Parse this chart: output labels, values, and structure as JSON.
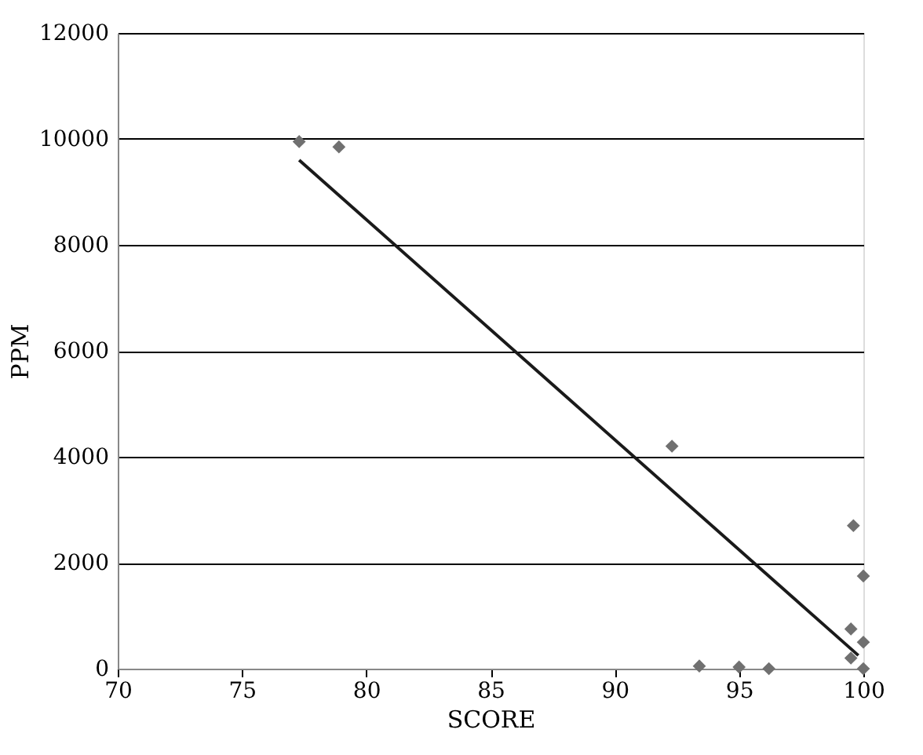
{
  "chart_data": {
    "type": "scatter",
    "xlabel": "SCORE",
    "ylabel": "PPM",
    "xlim": [
      70,
      100
    ],
    "ylim": [
      0,
      12000
    ],
    "xticks": [
      70,
      75,
      80,
      85,
      90,
      95,
      100
    ],
    "yticks": [
      0,
      2000,
      4000,
      6000,
      8000,
      10000,
      12000
    ],
    "grid": "y",
    "series": [
      {
        "marker": "diamond",
        "color": "#707070",
        "x": [
          77.3,
          78.9,
          92.3,
          99.6,
          100,
          99.5,
          100,
          99.5,
          93.4,
          95,
          96.2,
          100
        ],
        "values": [
          9950,
          9850,
          4200,
          2700,
          1750,
          750,
          500,
          200,
          50,
          30,
          0,
          0
        ]
      },
      {
        "type": "line",
        "line_style": "solid",
        "color": "#1a1a1a",
        "x": [
          77.3,
          99.8
        ],
        "values": [
          9600,
          250
        ]
      }
    ]
  }
}
